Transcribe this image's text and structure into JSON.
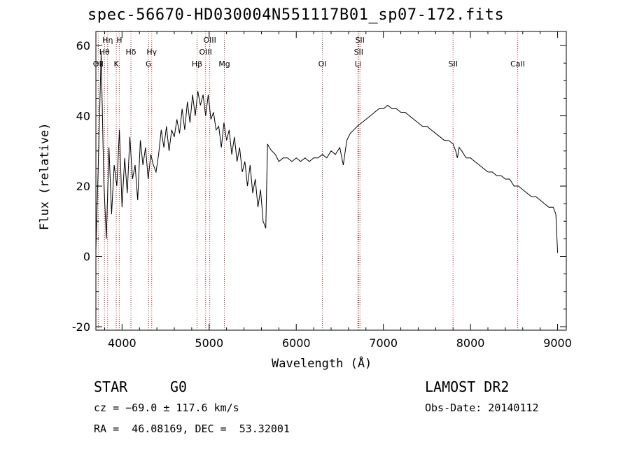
{
  "chart_data": {
    "type": "line",
    "title": "spec-56670-HD030004N551117B01_sp07-172.fits",
    "xlabel": "Wavelength (Å)",
    "ylabel": "Flux (relative)",
    "xlim": [
      3700,
      9100
    ],
    "ylim": [
      -21,
      64
    ],
    "x_ticks": [
      4000,
      5000,
      6000,
      7000,
      8000,
      9000
    ],
    "y_ticks": [
      -20,
      0,
      20,
      40,
      60
    ],
    "grid": false,
    "series": [
      {
        "color": "#000000",
        "x": [
          3700,
          3730,
          3760,
          3790,
          3820,
          3850,
          3880,
          3910,
          3940,
          3970,
          4000,
          4030,
          4060,
          4090,
          4120,
          4150,
          4180,
          4210,
          4240,
          4270,
          4300,
          4330,
          4360,
          4390,
          4420,
          4450,
          4480,
          4510,
          4540,
          4570,
          4600,
          4630,
          4660,
          4690,
          4720,
          4750,
          4780,
          4810,
          4840,
          4870,
          4900,
          4930,
          4960,
          4990,
          5020,
          5050,
          5080,
          5110,
          5140,
          5170,
          5200,
          5230,
          5260,
          5290,
          5320,
          5350,
          5380,
          5410,
          5440,
          5470,
          5500,
          5530,
          5560,
          5590,
          5620,
          5650,
          5670,
          5690,
          5720,
          5760,
          5800,
          5850,
          5900,
          5950,
          6000,
          6050,
          6100,
          6150,
          6200,
          6250,
          6300,
          6350,
          6400,
          6450,
          6500,
          6540,
          6580,
          6600,
          6620,
          6660,
          6700,
          6750,
          6800,
          6850,
          6900,
          6950,
          7000,
          7050,
          7100,
          7150,
          7200,
          7250,
          7300,
          7350,
          7400,
          7450,
          7500,
          7550,
          7600,
          7650,
          7700,
          7750,
          7800,
          7830,
          7850,
          7870,
          7900,
          7950,
          8000,
          8050,
          8100,
          8150,
          8200,
          8250,
          8300,
          8350,
          8400,
          8450,
          8500,
          8550,
          8600,
          8650,
          8700,
          8750,
          8800,
          8850,
          8900,
          8950,
          8980,
          9000
        ],
        "y": [
          2,
          28,
          58,
          22,
          5,
          31,
          12,
          26,
          20,
          36,
          14,
          28,
          18,
          34,
          22,
          26,
          16,
          33,
          26,
          31,
          22,
          29,
          26,
          24,
          29,
          36,
          31,
          37,
          30,
          36,
          34,
          39,
          35,
          42,
          36,
          44,
          38,
          46,
          40,
          47,
          43,
          46,
          40,
          46,
          39,
          41,
          36,
          37,
          31,
          38,
          33,
          36,
          29,
          34,
          27,
          31,
          24,
          27,
          20,
          26,
          18,
          22,
          14,
          19,
          10,
          8,
          32,
          31,
          30,
          29,
          27,
          28,
          28,
          27,
          28,
          27,
          28,
          27,
          28,
          28,
          29,
          28,
          30,
          29,
          31,
          26,
          33,
          34,
          35,
          36,
          37,
          38,
          39,
          40,
          41,
          42,
          42,
          43,
          42,
          42,
          41,
          41,
          40,
          39,
          38,
          37,
          37,
          36,
          35,
          34,
          33,
          33,
          32,
          30,
          28,
          31,
          30,
          28,
          28,
          27,
          26,
          25,
          24,
          24,
          23,
          23,
          22,
          22,
          20,
          20,
          19,
          18,
          17,
          17,
          16,
          15,
          14,
          14,
          12,
          1
        ]
      }
    ],
    "line_markers": [
      {
        "label": "OII",
        "x": 3727
      },
      {
        "label": "Hθ",
        "x": 3798
      },
      {
        "label": "Hη",
        "x": 3835
      },
      {
        "label": "K",
        "x": 3934
      },
      {
        "label": "H",
        "x": 3968
      },
      {
        "label": "Hδ",
        "x": 4102
      },
      {
        "label": "G",
        "x": 4305
      },
      {
        "label": "Hγ",
        "x": 4341
      },
      {
        "label": "Hβ",
        "x": 4861
      },
      {
        "label": "OIII",
        "x": 4959
      },
      {
        "label": "OIII",
        "x": 5007
      },
      {
        "label": "Mg",
        "x": 5175
      },
      {
        "label": "OI",
        "x": 6300
      },
      {
        "label": "Li",
        "x": 6708
      },
      {
        "label": "SII",
        "x": 6716
      },
      {
        "label": "SII",
        "x": 6731
      },
      {
        "label": "SII",
        "x": 7800
      },
      {
        "label": "CaII",
        "x": 8542
      }
    ]
  },
  "info": {
    "object_class": "STAR",
    "subclass": "G0",
    "survey": "LAMOST DR2",
    "cz": "cz = −69.0 ± 117.6 km/s",
    "obs_date": "Obs-Date: 20140112",
    "coords": "RA =  46.08169, DEC =  53.32001"
  }
}
